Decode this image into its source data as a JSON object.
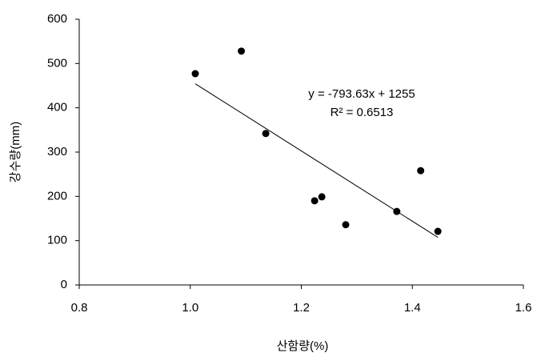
{
  "chart_data": {
    "type": "scatter",
    "x_label": "산함량(%)",
    "y_label": "강수량(mm)",
    "series": [
      {
        "name": null,
        "color": "#000000",
        "x": [
          1.009,
          1.092,
          1.136,
          1.224,
          1.237,
          1.28,
          1.372,
          1.415,
          1.446
        ],
        "values": [
          477,
          528,
          342,
          190,
          199,
          136,
          166,
          258,
          121
        ]
      }
    ],
    "trendline": {
      "slope": -793.63,
      "intercept": 1255,
      "equation": "y = -793.63x + 1255",
      "r2": "R² = 0.6513"
    },
    "xlim": [
      0.8,
      1.6
    ],
    "xticks": [
      0.8,
      {
        "value": 1,
        "label": "1.0"
      },
      1.2,
      1.4,
      1.6
    ],
    "ylim": [
      0,
      600
    ],
    "yticks": [
      0,
      100,
      200,
      300,
      400,
      500,
      600
    ],
    "grid": false
  }
}
